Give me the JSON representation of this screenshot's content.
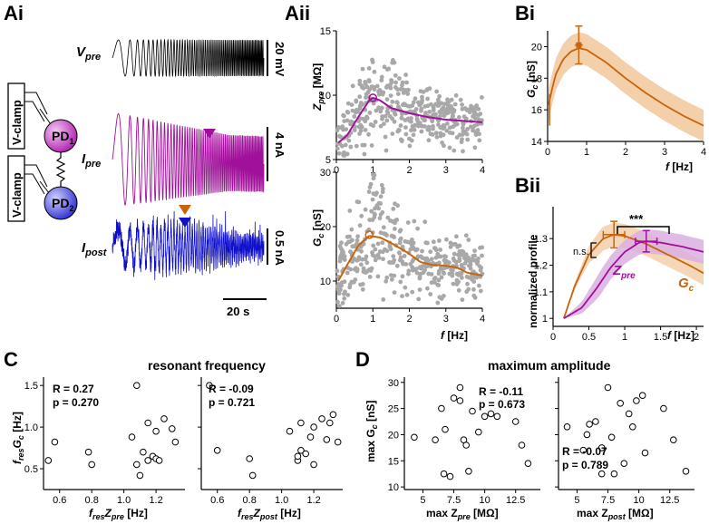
{
  "panels": {
    "Ai": "Ai",
    "Aii": "Aii",
    "Bi": "Bi",
    "Bii": "Bii",
    "C": "C",
    "D": "D"
  },
  "colors": {
    "purple": "#a0109a",
    "orange": "#c8640c",
    "blue": "#1010c8",
    "gray": "#a8a8a8",
    "band_orange": "#f3cfaa",
    "band_purple": "#dab0e0"
  },
  "ai": {
    "vpre_label": "V",
    "vpre_sub": "pre",
    "ipre_label": "I",
    "ipre_sub": "pre",
    "ipost_label": "I",
    "ipost_sub": "post",
    "vclamp_top": "V-clamp",
    "vclamp_bottom": "V-clamp",
    "pd1": "PD",
    "pd1_sub": "1",
    "pd2": "PD",
    "pd2_sub": "2",
    "scale_v": "20 mV",
    "scale_ipre": "4 nA",
    "scale_ipost": "0.5 nA",
    "scale_t": "20 s"
  },
  "aii": {
    "top_ylabel": "Z",
    "top_ylabel_sub": "pre",
    "top_ylabel_unit": " [MΩ]",
    "top_yticks": [
      "5",
      "10",
      "15"
    ],
    "bot_ylabel": "G",
    "bot_ylabel_sub": "c",
    "bot_ylabel_unit": " [nS]",
    "bot_yticks": [
      "10",
      "20",
      "30"
    ],
    "xticks": [
      "0",
      "1",
      "2",
      "3",
      "4"
    ],
    "xlabel": "f",
    "xlabel_unit": " [Hz]"
  },
  "bi": {
    "ylabel": "G",
    "ylabel_sub": "c",
    "ylabel_unit": " [nS]",
    "yticks": [
      "14",
      "16",
      "18",
      "20"
    ],
    "xticks": [
      "0",
      "1",
      "2",
      "3",
      "4"
    ],
    "xlabel": "f",
    "xlabel_unit": " [Hz]"
  },
  "bii": {
    "ylabel": "normalized profile",
    "yticks": [
      "1",
      "1.1",
      "1.2",
      "1.3"
    ],
    "xticks": [
      "0",
      "0.5",
      "1",
      "1.5",
      "2"
    ],
    "xlabel": "f",
    "xlabel_unit": " [Hz]",
    "sig": "***",
    "ns": "n.s.",
    "zpre": "Z",
    "zpre_sub": "pre",
    "gc": "G",
    "gc_sub": "c"
  },
  "c": {
    "title": "resonant frequency",
    "ylabel": "f",
    "ylabel_sub": "res",
    "ylabel_mid": "G",
    "ylabel_sub2": "c",
    "ylabel_unit": " [Hz]",
    "yticks": [
      "0.5",
      "1.0",
      "1.5"
    ],
    "left": {
      "r": "R = 0.27",
      "p": "p = 0.270",
      "xticks": [
        "0.6",
        "0.8",
        "1.0",
        "1.2"
      ],
      "xlabel": "f",
      "xsub": "res",
      "xmid": "Z",
      "xsub2": "pre",
      "xunit": " [Hz]"
    },
    "right": {
      "r": "R = -0.09",
      "p": "p = 0.721",
      "xticks": [
        "0.6",
        "0.8",
        "1.0",
        "1.2"
      ],
      "xlabel": "f",
      "xsub": "res",
      "xmid": "Z",
      "xsub2": "post",
      "xunit": " [Hz]"
    }
  },
  "d": {
    "title": "maximum amplitude",
    "ylabel": "max G",
    "ylabel_sub": "c",
    "ylabel_unit": " [nS]",
    "yticks": [
      "10",
      "15",
      "20",
      "25",
      "30"
    ],
    "left": {
      "r": "R = -0.11",
      "p": "p = 0.673",
      "xticks": [
        "5",
        "7.5",
        "10",
        "12.5"
      ],
      "xlabel": "max Z",
      "xsub": "pre",
      "xunit": " [MΩ]"
    },
    "right": {
      "r": "R = -0.07",
      "p": "p = 0.789",
      "xticks": [
        "5",
        "7.5",
        "10",
        "12.5"
      ],
      "xlabel": "max Z",
      "xsub": "post",
      "xunit": " [MΩ]"
    }
  },
  "chart_data": [
    {
      "type": "scatter",
      "title": "Aii top",
      "ylabel": "Zpre [MΩ]",
      "xlabel": "f [Hz]",
      "ylim": [
        5,
        15
      ],
      "xlim": [
        0,
        4
      ],
      "fit_x": [
        0.05,
        0.3,
        0.6,
        0.9,
        1.0,
        1.2,
        1.5,
        2.0,
        2.5,
        3.0,
        3.5,
        4.0
      ],
      "fit_y": [
        6.3,
        6.9,
        8.3,
        9.6,
        9.8,
        9.6,
        9.0,
        8.6,
        8.3,
        8.1,
        8.0,
        7.9
      ],
      "peak": [
        1.0,
        9.8
      ]
    },
    {
      "type": "scatter",
      "title": "Aii bottom",
      "ylabel": "Gc [nS]",
      "xlabel": "f [Hz]",
      "ylim": [
        5,
        30
      ],
      "xlim": [
        0,
        4
      ],
      "fit_x": [
        0.05,
        0.3,
        0.6,
        0.9,
        1.2,
        1.5,
        2.0,
        2.3,
        2.6,
        3.0,
        3.3,
        3.6,
        4.0
      ],
      "fit_y": [
        10,
        13,
        16.5,
        18.3,
        18,
        17,
        15,
        13.5,
        13,
        12.8,
        12.5,
        11.5,
        11
      ],
      "peak": [
        0.9,
        18.5
      ]
    },
    {
      "type": "line",
      "title": "Bi",
      "ylabel": "Gc [nS]",
      "xlabel": "f [Hz]",
      "ylim": [
        14,
        21
      ],
      "xlim": [
        0,
        4
      ],
      "x": [
        0.02,
        0.2,
        0.4,
        0.6,
        0.8,
        1.0,
        1.5,
        2.0,
        2.5,
        3.0,
        3.5,
        4.0
      ],
      "y": [
        16.3,
        18.2,
        19.2,
        19.7,
        19.9,
        19.8,
        19.0,
        18.0,
        17.1,
        16.3,
        15.6,
        15.0
      ],
      "band": 1.0,
      "peak": [
        0.8,
        20.1
      ],
      "peak_xerr": 0.1,
      "peak_yerr": 1.2,
      "start": [
        0.05,
        16.0
      ],
      "start_yerr": 1.0
    },
    {
      "type": "line",
      "title": "Bii",
      "ylabel": "normalized profile",
      "xlabel": "f [Hz]",
      "ylim": [
        0.97,
        1.42
      ],
      "xlim": [
        0,
        2.1
      ],
      "series": [
        {
          "name": "Gc",
          "x": [
            0.15,
            0.3,
            0.5,
            0.7,
            0.85,
            1.0,
            1.3,
            1.6,
            1.9,
            2.1
          ],
          "y": [
            1.0,
            1.12,
            1.24,
            1.3,
            1.315,
            1.31,
            1.28,
            1.24,
            1.2,
            1.17
          ]
        },
        {
          "name": "Zpre",
          "x": [
            0.15,
            0.4,
            0.6,
            0.8,
            1.0,
            1.2,
            1.3,
            1.5,
            1.8,
            2.1
          ],
          "y": [
            1.0,
            1.04,
            1.11,
            1.19,
            1.25,
            1.285,
            1.29,
            1.285,
            1.27,
            1.25
          ]
        }
      ],
      "peaks": [
        {
          "name": "Gc",
          "x": 0.85,
          "y": 1.315,
          "xerr": 0.15,
          "yerr": 0.05
        },
        {
          "name": "Zpre",
          "x": 1.3,
          "y": 1.29,
          "xerr": 0.15,
          "yerr": 0.04
        }
      ]
    },
    {
      "type": "scatter",
      "title": "C left",
      "xlabel": "fresZpre [Hz]",
      "ylabel": "fresGc [Hz]",
      "xlim": [
        0.5,
        1.38
      ],
      "ylim": [
        0.25,
        1.6
      ],
      "x": [
        0.53,
        0.57,
        0.78,
        0.8,
        1.05,
        1.08,
        1.1,
        1.12,
        1.15,
        1.15,
        1.18,
        1.2,
        1.2,
        1.22,
        1.25,
        1.3,
        1.32,
        1.08
      ],
      "y": [
        0.6,
        0.82,
        0.7,
        0.55,
        0.88,
        0.55,
        0.42,
        0.7,
        0.6,
        1.05,
        0.65,
        0.62,
        0.95,
        0.6,
        1.1,
        0.98,
        0.82,
        1.5
      ]
    },
    {
      "type": "scatter",
      "title": "C right",
      "xlabel": "fresZpost [Hz]",
      "ylabel": "fresGc [Hz]",
      "xlim": [
        0.5,
        1.38
      ],
      "ylim": [
        0.25,
        1.6
      ],
      "x": [
        0.55,
        0.6,
        0.8,
        0.82,
        1.05,
        1.1,
        1.1,
        1.12,
        1.12,
        1.15,
        1.18,
        1.2,
        1.2,
        1.25,
        1.28,
        1.3,
        1.32,
        1.35
      ],
      "y": [
        1.5,
        0.72,
        0.62,
        0.42,
        0.95,
        0.6,
        0.65,
        0.72,
        1.05,
        0.68,
        0.88,
        0.55,
        1.0,
        1.1,
        0.85,
        1.05,
        1.15,
        0.82
      ]
    },
    {
      "type": "scatter",
      "title": "D left",
      "xlabel": "max Zpre [MΩ]",
      "ylabel": "max Gc [nS]",
      "xlim": [
        3.5,
        14.5
      ],
      "ylim": [
        9.5,
        31
      ],
      "x": [
        4.3,
        6.0,
        6.5,
        6.7,
        6.8,
        7.2,
        7.5,
        8.0,
        8.0,
        8.3,
        8.5,
        8.7,
        9.0,
        9.5,
        10.0,
        10.5,
        11.0,
        12.5,
        13.0,
        13.5
      ],
      "y": [
        19.5,
        19.0,
        25.0,
        12.5,
        21.0,
        12.0,
        27.0,
        26.5,
        29.0,
        19.0,
        18.0,
        13.0,
        24.5,
        20.5,
        23.5,
        24.0,
        23.5,
        22.5,
        18.0,
        14.5
      ]
    },
    {
      "type": "scatter",
      "title": "D right",
      "xlabel": "max Zpost [MΩ]",
      "ylabel": "max Gc [nS]",
      "xlim": [
        3.5,
        14.5
      ],
      "ylim": [
        9.5,
        31
      ],
      "x": [
        4.2,
        5.5,
        5.8,
        6.0,
        6.5,
        7.0,
        7.0,
        7.5,
        7.8,
        8.0,
        8.5,
        8.8,
        9.2,
        9.5,
        9.8,
        10.3,
        10.5,
        12.0,
        12.8,
        13.8
      ],
      "y": [
        21.5,
        17.0,
        20.0,
        22.0,
        22.5,
        17.5,
        12.5,
        29.0,
        19.5,
        12.5,
        26.0,
        14.5,
        24.0,
        21.5,
        26.5,
        27.5,
        16.5,
        25.0,
        19.0,
        13.0
      ]
    }
  ]
}
